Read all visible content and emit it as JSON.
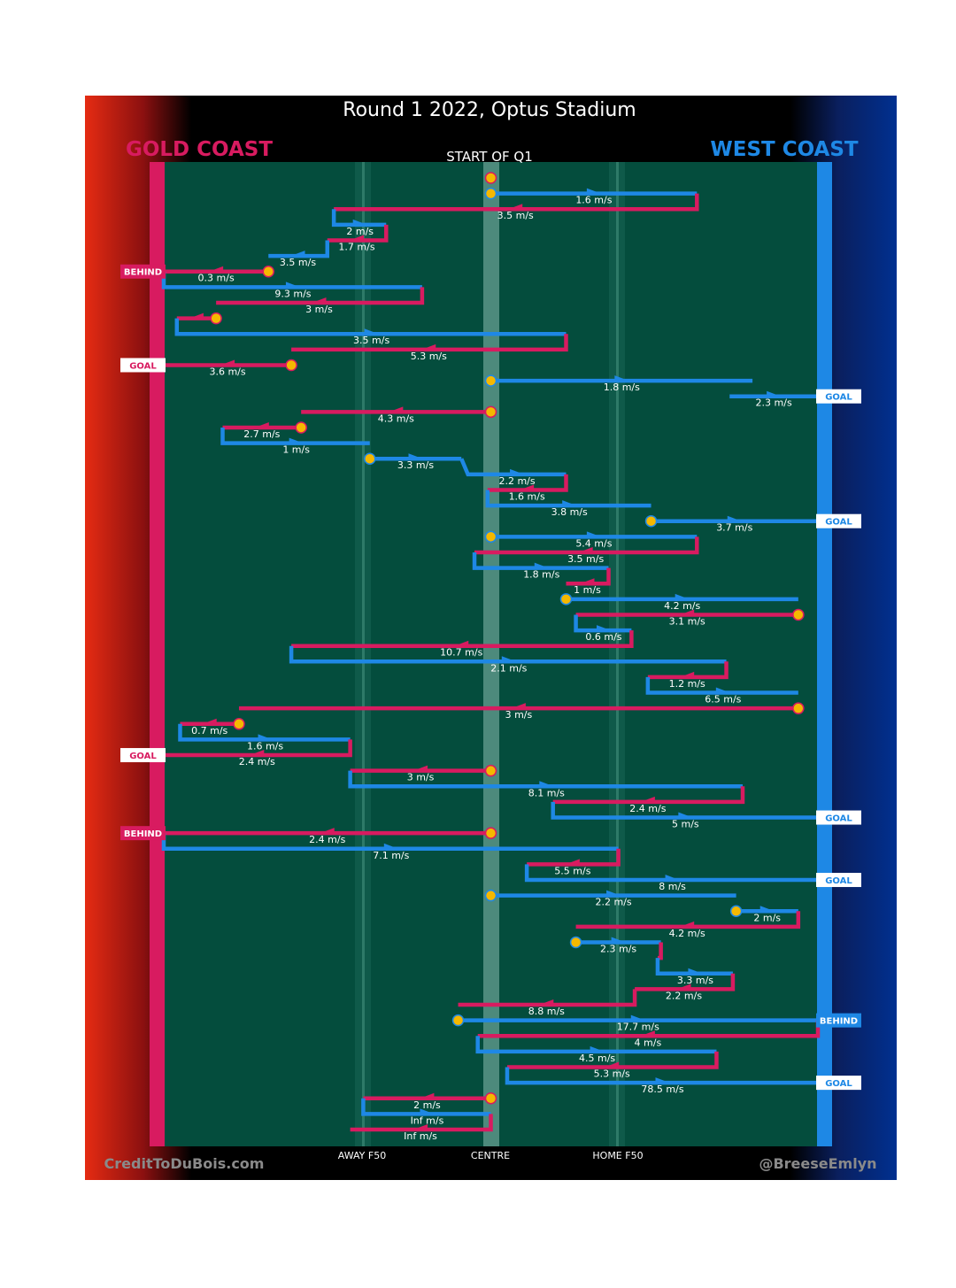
{
  "header": {
    "title": "Round 1 2022, Optus Stadium",
    "home_team": "GOLD COAST",
    "away_team": "WEST COAST",
    "quarter_label": "START OF Q1"
  },
  "footer": {
    "credit_left": "CreditToDuBois.com",
    "credit_right": "@BreeseEmlyn",
    "axis_labels": [
      "AWAY F50",
      "CENTRE",
      "HOME F50"
    ]
  },
  "colors": {
    "gold_coast": "#d81b60",
    "west_coast": "#1e88e5",
    "field": "#044d3d",
    "stoppage": "#f5b800"
  },
  "chart_data": {
    "type": "line",
    "title": "Round 1 2022, Optus Stadium",
    "subtitle": "START OF Q1",
    "description": "Ball movement chain chart; x = field position from Gold Coast goal (0) to West Coast goal (100), rows run top to bottom in time order",
    "xlim": [
      0,
      100
    ],
    "x_ticks": [
      {
        "label": "AWAY F50",
        "x": 30
      },
      {
        "label": "CENTRE",
        "x": 50
      },
      {
        "label": "HOME F50",
        "x": 70
      }
    ],
    "series": [
      {
        "name": "GOLD COAST",
        "color": "#d81b60"
      },
      {
        "name": "WEST COAST",
        "color": "#1e88e5"
      }
    ],
    "chains": [
      {
        "team": "GC",
        "x_start": 50,
        "x_end": 50,
        "speed": "",
        "stoppage_at": "end"
      },
      {
        "team": "WC",
        "x_start": 50,
        "x_end": 81.5,
        "speed": "1.6 m/s",
        "stoppage_at": "start"
      },
      {
        "team": "GC",
        "x_start": 81.5,
        "x_end": 26,
        "speed": "3.5 m/s"
      },
      {
        "team": "WC",
        "x_start": 26,
        "x_end": 34,
        "speed": "2 m/s"
      },
      {
        "team": "GC",
        "x_start": 34,
        "x_end": 25,
        "speed": "1.7 m/s"
      },
      {
        "team": "WC",
        "x_start": 25,
        "x_end": 16,
        "speed": "3.5 m/s"
      },
      {
        "team": "GC",
        "x_start": 16,
        "x_end": 0,
        "speed": "0.3 m/s",
        "stoppage_at": "start",
        "result": "BEHIND"
      },
      {
        "team": "WC",
        "x_start": 0,
        "x_end": 39.5,
        "speed": "9.3 m/s"
      },
      {
        "team": "GC",
        "x_start": 39.5,
        "x_end": 8,
        "speed": "3 m/s"
      },
      {
        "team": "GC",
        "x_start": 8,
        "x_end": 2,
        "speed": "",
        "stoppage_at": "start"
      },
      {
        "team": "WC",
        "x_start": 2,
        "x_end": 61.5,
        "speed": "3.5 m/s"
      },
      {
        "team": "GC",
        "x_start": 61.5,
        "x_end": 19.5,
        "speed": "5.3 m/s"
      },
      {
        "team": "GC",
        "x_start": 19.5,
        "x_end": 0,
        "speed": "3.6 m/s",
        "stoppage_at": "start",
        "result": "GOAL"
      },
      {
        "team": "WC",
        "x_start": 50,
        "x_end": 90,
        "speed": "1.8 m/s",
        "stoppage_at": "start"
      },
      {
        "team": "WC",
        "x_start": 86.5,
        "x_end": 100,
        "speed": "2.3 m/s",
        "result": "GOAL"
      },
      {
        "team": "GC",
        "x_start": 50,
        "x_end": 21,
        "speed": "4.3 m/s",
        "stoppage_at": "start"
      },
      {
        "team": "GC",
        "x_start": 21,
        "x_end": 9,
        "speed": "2.7 m/s",
        "stoppage_at": "start"
      },
      {
        "team": "WC",
        "x_start": 9,
        "x_end": 31.5,
        "speed": "1 m/s"
      },
      {
        "team": "WC",
        "x_start": 31.5,
        "x_end": 45.5,
        "speed": "3.3 m/s",
        "stoppage_at": "start"
      },
      {
        "team": "WC",
        "x_start": 46.5,
        "x_end": 61.5,
        "speed": "2.2 m/s"
      },
      {
        "team": "GC",
        "x_start": 61.5,
        "x_end": 49.5,
        "speed": "1.6 m/s"
      },
      {
        "team": "WC",
        "x_start": 49.5,
        "x_end": 74.5,
        "speed": "3.8 m/s"
      },
      {
        "team": "WC",
        "x_start": 74.5,
        "x_end": 100,
        "speed": "3.7 m/s",
        "stoppage_at": "start",
        "result": "GOAL"
      },
      {
        "team": "WC",
        "x_start": 50,
        "x_end": 81.5,
        "speed": "5.4 m/s",
        "stoppage_at": "start"
      },
      {
        "team": "GC",
        "x_start": 81.5,
        "x_end": 47.5,
        "speed": "3.5 m/s"
      },
      {
        "team": "WC",
        "x_start": 47.5,
        "x_end": 68,
        "speed": "1.8 m/s"
      },
      {
        "team": "GC",
        "x_start": 68,
        "x_end": 61.5,
        "speed": "1 m/s"
      },
      {
        "team": "WC",
        "x_start": 61.5,
        "x_end": 97,
        "speed": "4.2 m/s",
        "stoppage_at": "start"
      },
      {
        "team": "GC",
        "x_start": 97,
        "x_end": 63,
        "speed": "3.1 m/s",
        "stoppage_at": "start"
      },
      {
        "team": "WC",
        "x_start": 63,
        "x_end": 71.5,
        "speed": "0.6 m/s"
      },
      {
        "team": "GC",
        "x_start": 71.5,
        "x_end": 19.5,
        "speed": "10.7 m/s"
      },
      {
        "team": "WC",
        "x_start": 19.5,
        "x_end": 86,
        "speed": "2.1 m/s"
      },
      {
        "team": "GC",
        "x_start": 86,
        "x_end": 74,
        "speed": "1.2 m/s"
      },
      {
        "team": "WC",
        "x_start": 74,
        "x_end": 97,
        "speed": "6.5 m/s"
      },
      {
        "team": "GC",
        "x_start": 97,
        "x_end": 11.5,
        "speed": "3 m/s",
        "stoppage_at": "start"
      },
      {
        "team": "GC",
        "x_start": 11.5,
        "x_end": 2.5,
        "speed": "0.7 m/s",
        "stoppage_at": "start"
      },
      {
        "team": "WC",
        "x_start": 2.5,
        "x_end": 28.5,
        "speed": "1.6 m/s"
      },
      {
        "team": "GC",
        "x_start": 28.5,
        "x_end": 0,
        "speed": "2.4 m/s",
        "result": "GOAL"
      },
      {
        "team": "GC",
        "x_start": 50,
        "x_end": 28.5,
        "speed": "3 m/s",
        "stoppage_at": "start"
      },
      {
        "team": "WC",
        "x_start": 28.5,
        "x_end": 88.5,
        "speed": "8.1 m/s"
      },
      {
        "team": "GC",
        "x_start": 88.5,
        "x_end": 59.5,
        "speed": "2.4 m/s"
      },
      {
        "team": "WC",
        "x_start": 59.5,
        "x_end": 100,
        "speed": "5 m/s",
        "result": "GOAL"
      },
      {
        "team": "GC",
        "x_start": 50,
        "x_end": 0,
        "speed": "2.4 m/s",
        "stoppage_at": "start",
        "result": "BEHIND"
      },
      {
        "team": "WC",
        "x_start": 0,
        "x_end": 69.5,
        "speed": "7.1 m/s"
      },
      {
        "team": "GC",
        "x_start": 69.5,
        "x_end": 55.5,
        "speed": "5.5 m/s"
      },
      {
        "team": "WC",
        "x_start": 55.5,
        "x_end": 100,
        "speed": "8 m/s",
        "result": "GOAL"
      },
      {
        "team": "WC",
        "x_start": 50,
        "x_end": 87.5,
        "speed": "2.2 m/s",
        "stoppage_at": "start"
      },
      {
        "team": "WC",
        "x_start": 87.5,
        "x_end": 97,
        "speed": "2 m/s",
        "stoppage_at": "start"
      },
      {
        "team": "GC",
        "x_start": 97,
        "x_end": 63,
        "speed": "4.2 m/s"
      },
      {
        "team": "WC",
        "x_start": 63,
        "x_end": 76,
        "speed": "2.3 m/s",
        "stoppage_at": "start"
      },
      {
        "team": "GC",
        "x_start": 76,
        "x_end": 75.5,
        "speed": ""
      },
      {
        "team": "WC",
        "x_start": 75.5,
        "x_end": 87,
        "speed": "3.3 m/s"
      },
      {
        "team": "GC",
        "x_start": 87,
        "x_end": 72,
        "speed": "2.2 m/s"
      },
      {
        "team": "GC",
        "x_start": 72,
        "x_end": 45,
        "speed": "8.8 m/s"
      },
      {
        "team": "WC",
        "x_start": 45,
        "x_end": 100,
        "speed": "17.7 m/s",
        "stoppage_at": "start",
        "result": "BEHIND"
      },
      {
        "team": "GC",
        "x_start": 100,
        "x_end": 48,
        "speed": "4 m/s"
      },
      {
        "team": "WC",
        "x_start": 48,
        "x_end": 84.5,
        "speed": "4.5 m/s"
      },
      {
        "team": "GC",
        "x_start": 84.5,
        "x_end": 52.5,
        "speed": "5.3 m/s"
      },
      {
        "team": "WC",
        "x_start": 52.5,
        "x_end": 100,
        "speed": "78.5 m/s",
        "result": "GOAL"
      },
      {
        "team": "GC",
        "x_start": 50,
        "x_end": 30.5,
        "speed": "2 m/s",
        "stoppage_at": "start"
      },
      {
        "team": "WC",
        "x_start": 30.5,
        "x_end": 50,
        "speed": "Inf m/s"
      },
      {
        "team": "GC",
        "x_start": 50,
        "x_end": 28.5,
        "speed": "Inf m/s"
      }
    ]
  }
}
